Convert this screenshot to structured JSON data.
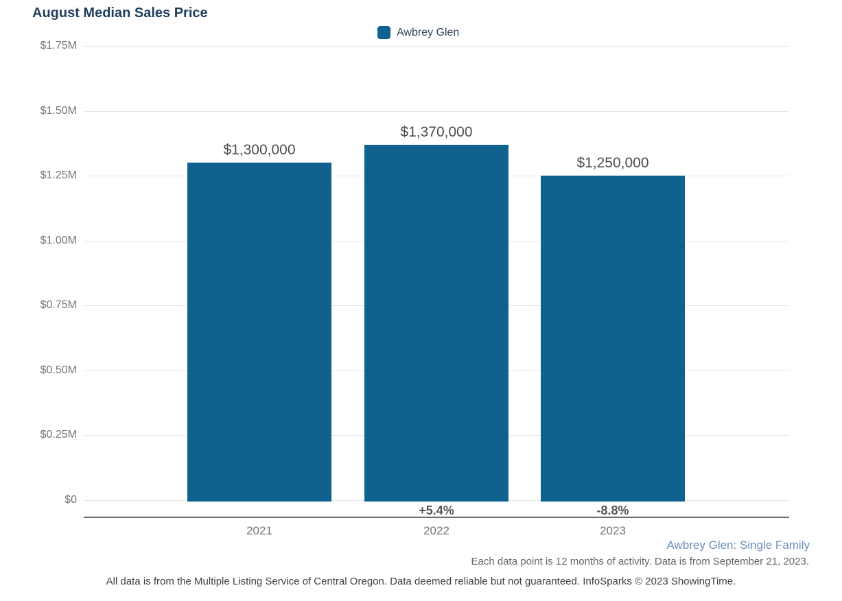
{
  "title": "August Median Sales Price",
  "legend": {
    "label": "Awbrey Glen",
    "swatch_color": "#11618F"
  },
  "chart_data": {
    "type": "bar",
    "title": "August Median Sales Price",
    "categories": [
      "2021",
      "2022",
      "2023"
    ],
    "values": [
      1300000,
      1370000,
      1250000
    ],
    "value_labels": [
      "$1,300,000",
      "$1,370,000",
      "$1,250,000"
    ],
    "pct_change_labels": [
      "",
      "+5.4%",
      "-8.8%"
    ],
    "series_name": "Awbrey Glen",
    "xlabel": "",
    "ylabel": "",
    "ylim": [
      0,
      1750000
    ],
    "ytick_values": [
      0,
      250000,
      500000,
      750000,
      1000000,
      1250000,
      1500000,
      1750000
    ],
    "ytick_labels": [
      "$0",
      "$0.25M",
      "$0.50M",
      "$0.75M",
      "$1.00M",
      "$1.25M",
      "$1.50M",
      "$1.75M"
    ],
    "bar_color": "#11618F",
    "grid": true,
    "legend_position": "top"
  },
  "footer": {
    "series_note": "Awbrey Glen: Single Family",
    "data_note": "Each data point is 12 months of activity. Data is from September 21, 2023.",
    "disclaimer": "All data is from the Multiple Listing Service of Central Oregon. Data deemed reliable but not guaranteed. InfoSparks © 2023 ShowingTime."
  },
  "colors": {
    "title": "#1F3E5C",
    "bar": "#11618F",
    "gridline": "#E4E4E4",
    "axis_line": "#6B6B6B",
    "tick_text": "#757575",
    "value_text": "#4D4D4D",
    "pct_text": "#555555",
    "footer_series": "#6A8FB5",
    "footer_note": "#666666",
    "disclaimer": "#404040"
  }
}
